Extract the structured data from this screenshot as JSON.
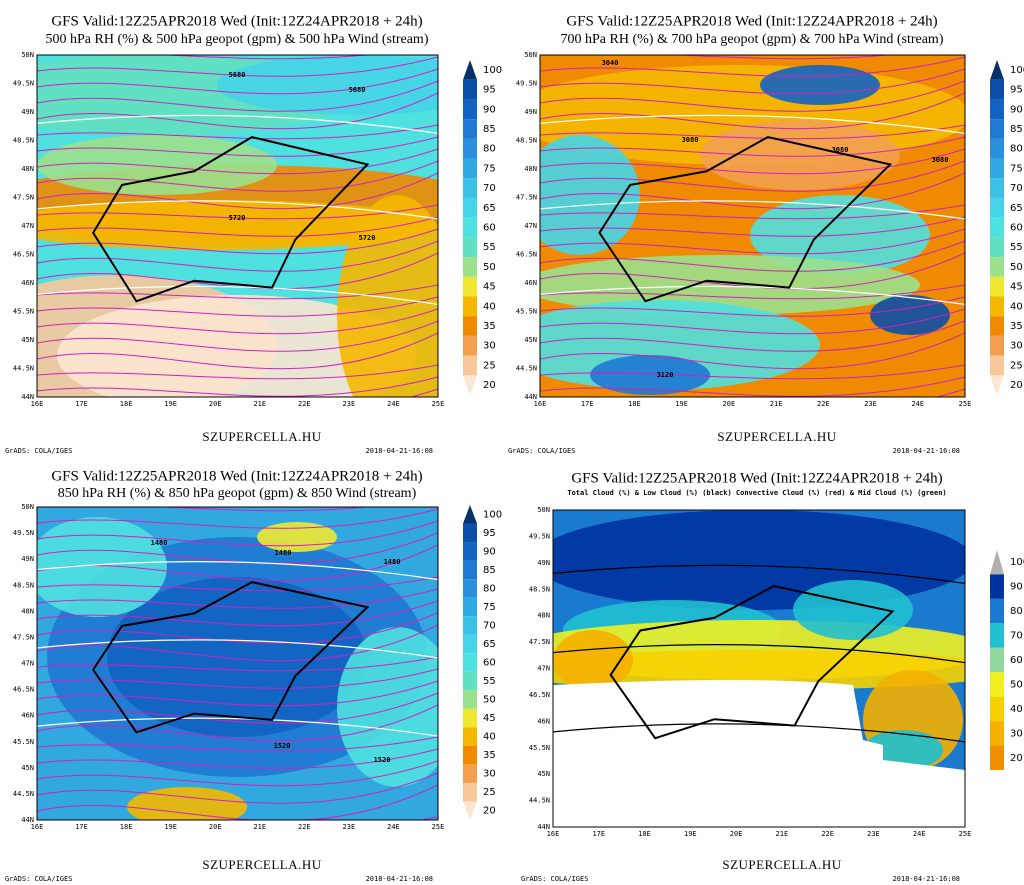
{
  "panels": [
    {
      "title": "GFS Valid:12Z25APR2018 Wed (Init:12Z24APR2018 + 24h)",
      "subtitle": "500 hPa RH (%) & 500 hPa geopot (gpm) & 500 hPa Wind (stream)",
      "colorbar": [
        100,
        95,
        90,
        85,
        80,
        75,
        70,
        65,
        60,
        55,
        50,
        45,
        40,
        35,
        30,
        25,
        20
      ],
      "colors": [
        "#08306b",
        "#0b4fa8",
        "#1263c2",
        "#1f78d1",
        "#2a8fdc",
        "#31a8e0",
        "#3cc0e6",
        "#45d4e8",
        "#4fe0e0",
        "#60e0c0",
        "#9be08c",
        "#f0e830",
        "#f5b800",
        "#f08a00",
        "#f2a050",
        "#f7c89a",
        "#fbe6d0"
      ],
      "lat_labels": [
        "50N",
        "49.5N",
        "49N",
        "48.5N",
        "48N",
        "47.5N",
        "47N",
        "46.5N",
        "46N",
        "45.5N",
        "45N",
        "44.5N",
        "44N"
      ],
      "lon_labels": [
        "16E",
        "17E",
        "18E",
        "19E",
        "20E",
        "21E",
        "22E",
        "23E",
        "24E",
        "25E"
      ],
      "contour_labels": [
        "5680",
        "5680",
        "5720",
        "5720"
      ],
      "site": "SZUPERCELLA.HU",
      "credit": "GrADS: COLA/IGES",
      "timestamp": "2018-04-21-16:08"
    },
    {
      "title": "GFS Valid:12Z25APR2018 Wed (Init:12Z24APR2018 + 24h)",
      "subtitle": "700 hPa RH (%) & 700 hPa geopot (gpm) & 700 hPa Wind (stream)",
      "colorbar": [
        100,
        95,
        90,
        85,
        80,
        75,
        70,
        65,
        60,
        55,
        50,
        45,
        40,
        35,
        30,
        25,
        20
      ],
      "colors": [
        "#08306b",
        "#0b4fa8",
        "#1263c2",
        "#1f78d1",
        "#2a8fdc",
        "#31a8e0",
        "#3cc0e6",
        "#45d4e8",
        "#4fe0e0",
        "#60e0c0",
        "#9be08c",
        "#f0e830",
        "#f5b800",
        "#f08a00",
        "#f2a050",
        "#f7c89a",
        "#fbe6d0"
      ],
      "lat_labels": [
        "50N",
        "49.5N",
        "49N",
        "48.5N",
        "48N",
        "47.5N",
        "47N",
        "46.5N",
        "46N",
        "45.5N",
        "45N",
        "44.5N",
        "44N"
      ],
      "lon_labels": [
        "16E",
        "17E",
        "18E",
        "19E",
        "20E",
        "21E",
        "22E",
        "23E",
        "24E",
        "25E"
      ],
      "contour_labels": [
        "3040",
        "3080",
        "3080",
        "3080",
        "3120"
      ],
      "site": "SZUPERCELLA.HU",
      "credit": "GrADS: COLA/IGES",
      "timestamp": "2018-04-21-16:08"
    },
    {
      "title": "GFS Valid:12Z25APR2018 Wed (Init:12Z24APR2018 + 24h)",
      "subtitle": "850 hPa RH (%) & 850 hPa geopot (gpm) & 850 Wind (stream)",
      "colorbar": [
        100,
        95,
        90,
        85,
        80,
        75,
        70,
        65,
        60,
        55,
        50,
        45,
        40,
        35,
        30,
        25,
        20
      ],
      "colors": [
        "#08306b",
        "#0b4fa8",
        "#1263c2",
        "#1f78d1",
        "#2a8fdc",
        "#31a8e0",
        "#3cc0e6",
        "#45d4e8",
        "#4fe0e0",
        "#60e0c0",
        "#9be08c",
        "#f0e830",
        "#f5b800",
        "#f08a00",
        "#f2a050",
        "#f7c89a",
        "#fbe6d0"
      ],
      "lat_labels": [
        "50N",
        "49.5N",
        "49N",
        "48.5N",
        "48N",
        "47.5N",
        "47N",
        "46.5N",
        "46N",
        "45.5N",
        "45N",
        "44.5N",
        "44N"
      ],
      "lon_labels": [
        "16E",
        "17E",
        "18E",
        "19E",
        "20E",
        "21E",
        "22E",
        "23E",
        "24E",
        "25E"
      ],
      "contour_labels": [
        "1480",
        "1480",
        "1480",
        "1520",
        "1520"
      ],
      "site": "SZUPERCELLA.HU",
      "credit": "GrADS: COLA/IGES",
      "timestamp": "2018-04-21-16:08"
    },
    {
      "title": "GFS Valid:12Z25APR2018 Wed (Init:12Z24APR2018 + 24h)",
      "subtitle": "Total Cloud (%) & Low Cloud (%) (black) Convective Cloud (%) (red) & Mid Cloud (%) (green)",
      "colorbar": [
        100,
        90,
        80,
        70,
        60,
        50,
        40,
        30,
        20
      ],
      "colors": [
        "#b0b0b0",
        "#0033a0",
        "#1a7ad0",
        "#20c0d0",
        "#90d8a0",
        "#f0f020",
        "#f7d000",
        "#f5b000",
        "#f09000"
      ],
      "lat_labels": [
        "50N",
        "49.5N",
        "49N",
        "48.5N",
        "48N",
        "47.5N",
        "47N",
        "46.5N",
        "46N",
        "45.5N",
        "45N",
        "44.5N",
        "44N"
      ],
      "lon_labels": [
        "16E",
        "17E",
        "18E",
        "19E",
        "20E",
        "21E",
        "22E",
        "23E",
        "24E",
        "25E"
      ],
      "contour_labels": [],
      "site": "SZUPERCELLA.HU",
      "credit": "GrADS: COLA/IGES",
      "timestamp": "2018-04-21-16:08"
    }
  ]
}
